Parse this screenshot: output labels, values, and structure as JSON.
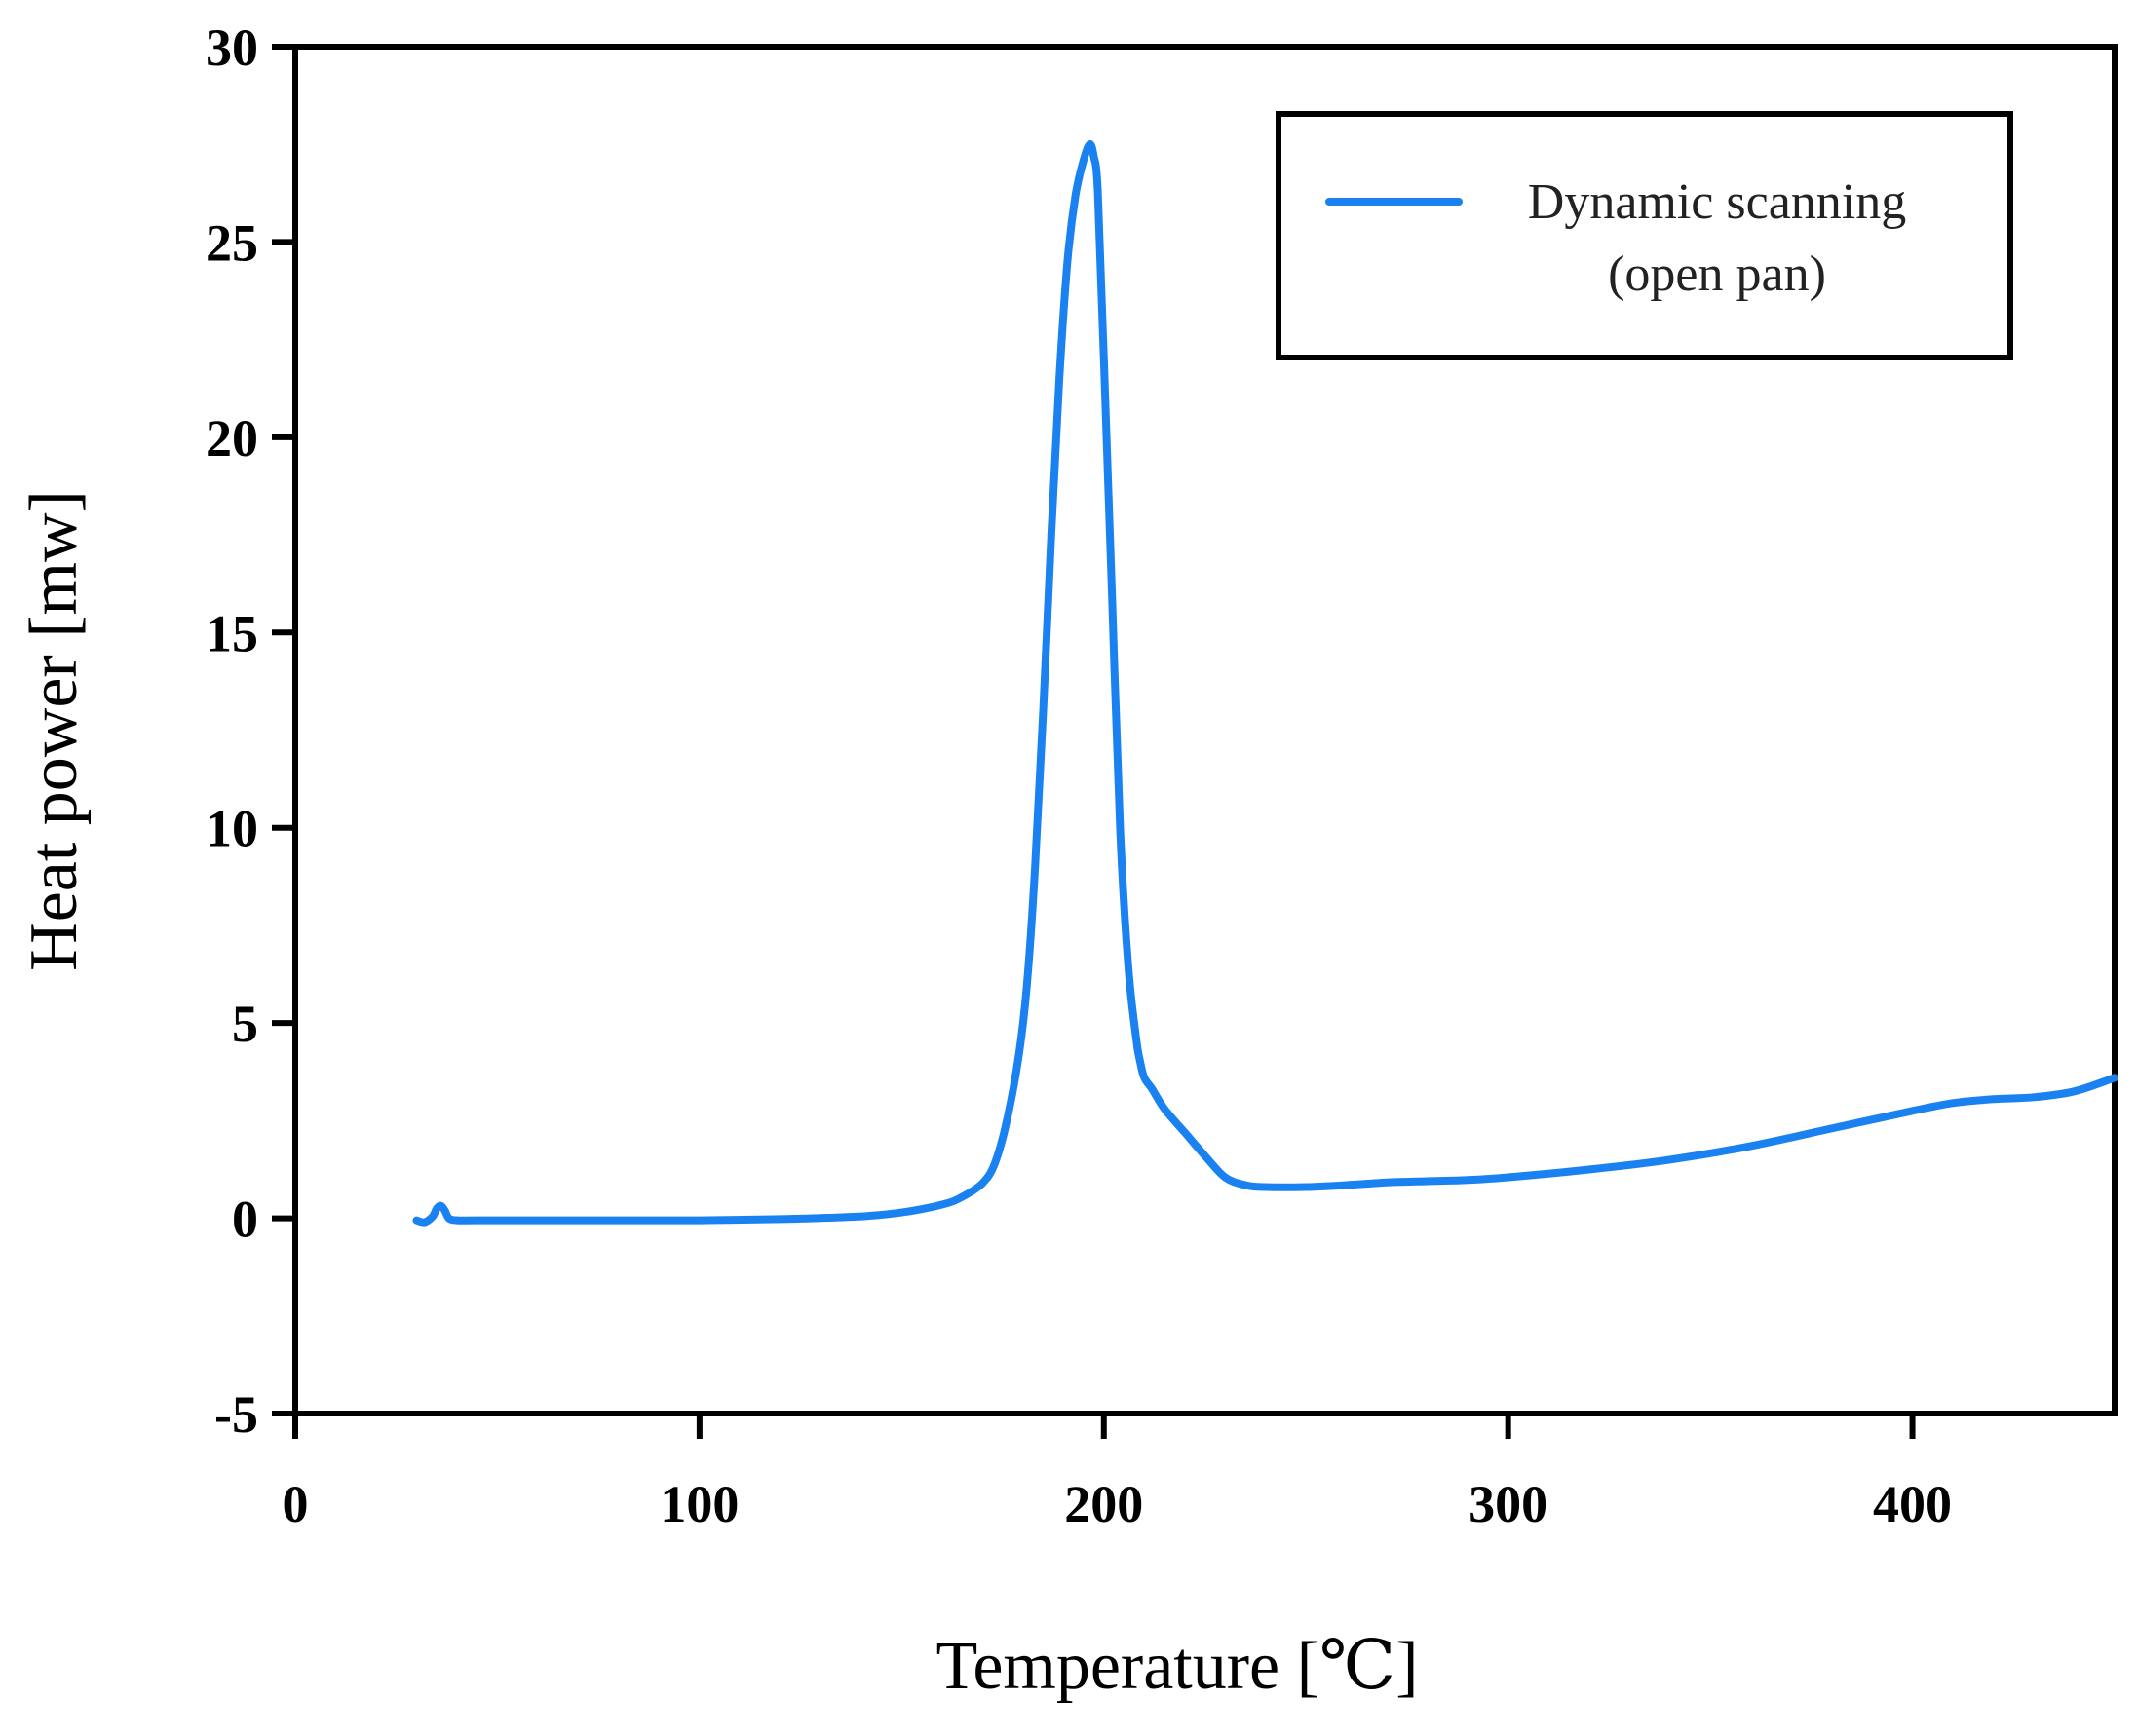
{
  "chart_data": {
    "type": "line",
    "title": "",
    "xlabel": "Temperature [℃]",
    "ylabel": "Heat power [mw]",
    "xlim": [
      0,
      450
    ],
    "ylim": [
      -5,
      30
    ],
    "xticks": [
      0,
      100,
      200,
      300,
      400
    ],
    "yticks": [
      -5,
      0,
      5,
      10,
      15,
      20,
      25,
      30
    ],
    "xtick_labels": [
      "0",
      "100",
      "200",
      "300",
      "400"
    ],
    "ytick_labels": [
      "-5",
      "0",
      "5",
      "10",
      "15",
      "20",
      "25",
      "30"
    ],
    "grid": false,
    "legend_position": "top-right",
    "series": [
      {
        "name": "Dynamic scanning",
        "name_line2": "(open pan)",
        "color": "#1a82f0",
        "x": [
          30,
          32,
          34,
          35,
          36,
          37,
          38,
          40,
          45,
          60,
          80,
          100,
          120,
          140,
          150,
          160,
          165,
          170,
          173,
          176,
          179,
          181,
          183,
          185,
          187,
          189,
          191,
          193,
          195,
          196.5,
          197.5,
          198.5,
          200,
          202,
          204,
          206,
          208,
          209,
          210,
          212,
          215,
          220,
          225,
          230,
          235,
          240,
          250,
          260,
          270,
          280,
          290,
          300,
          320,
          340,
          360,
          380,
          400,
          410,
          420,
          430,
          440,
          450
        ],
        "y": [
          -0.05,
          -0.1,
          0.05,
          0.25,
          0.32,
          0.2,
          0.0,
          -0.05,
          -0.05,
          -0.05,
          -0.05,
          -0.05,
          -0.02,
          0.05,
          0.15,
          0.35,
          0.55,
          0.9,
          1.4,
          2.5,
          4.2,
          6.0,
          9.0,
          13.0,
          17.5,
          21.5,
          24.5,
          26.2,
          27.1,
          27.5,
          27.2,
          26.3,
          22.0,
          16.0,
          10.0,
          6.5,
          4.6,
          4.0,
          3.6,
          3.3,
          2.8,
          2.2,
          1.6,
          1.05,
          0.85,
          0.8,
          0.8,
          0.85,
          0.92,
          0.95,
          0.98,
          1.05,
          1.25,
          1.5,
          1.85,
          2.3,
          2.75,
          2.95,
          3.05,
          3.1,
          3.25,
          3.6
        ]
      }
    ]
  }
}
